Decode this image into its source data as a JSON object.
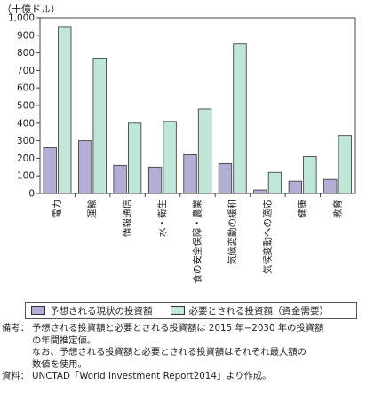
{
  "chart_data": {
    "type": "bar",
    "unit_label": "（十億ドル）",
    "categories": [
      "電力",
      "運輸",
      "情報通信",
      "水・衛生",
      "食の安全保障・農業",
      "気候変動の緩和",
      "気候変動への適応",
      "健康",
      "教育"
    ],
    "series": [
      {
        "name": "予想される現状の投資額",
        "color": "#b3aed4",
        "values": [
          260,
          300,
          160,
          150,
          220,
          170,
          20,
          70,
          80
        ]
      },
      {
        "name": "必要とされる投資額（資金需要）",
        "color": "#bfe6d6",
        "values": [
          950,
          770,
          400,
          410,
          480,
          850,
          120,
          210,
          330
        ]
      }
    ],
    "yticks": [
      "0",
      "100",
      "200",
      "300",
      "400",
      "500",
      "600",
      "700",
      "800",
      "900",
      "1,000"
    ],
    "ylim": [
      0,
      1000
    ],
    "grid": false,
    "legend_position": "bottom"
  },
  "notes": {
    "biko_label": "備考：",
    "biko_lines": [
      "予想される投資額と必要とされる投資額は 2015 年−2030 年の投資額",
      "の年間推定値。",
      "なお、予想される投資額と必要とされる投資額はそれぞれ最大額の",
      "数値を使用。"
    ],
    "shiryo_label": "資料：",
    "shiryo_lines": [
      "UNCTAD「World Investment Report2014」より作成。"
    ]
  }
}
